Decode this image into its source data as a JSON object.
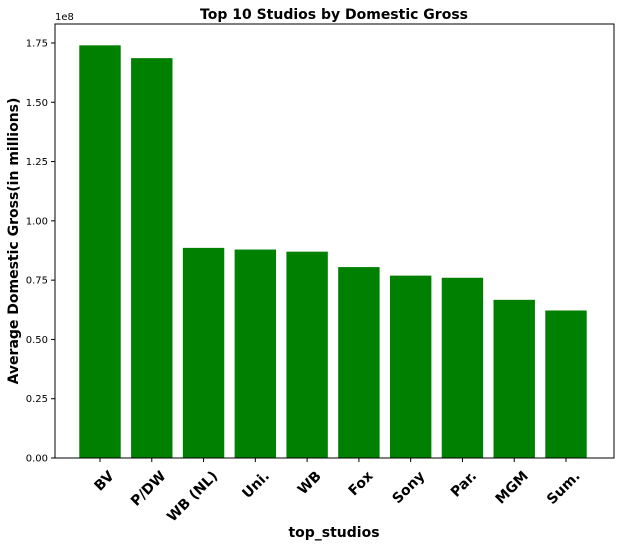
{
  "chart_data": {
    "type": "bar",
    "title": "Top 10 Studios by Domestic Gross",
    "xlabel": "top_studios",
    "ylabel": "Average Domestic Gross(in millions)",
    "y_offset_label": "1e8",
    "categories": [
      "BV",
      "P/DW",
      "WB (NL)",
      "Uni.",
      "WB",
      "Fox",
      "Sony",
      "Par.",
      "MGM",
      "Sum."
    ],
    "values": [
      174000000,
      168600000,
      88600000,
      87900000,
      87000000,
      80500000,
      76900000,
      76000000,
      66700000,
      62200000
    ],
    "ylim": [
      0,
      183000000
    ],
    "yticks": [
      0,
      25000000,
      50000000,
      75000000,
      100000000,
      125000000,
      150000000,
      175000000
    ],
    "ytick_labels": [
      "0.00",
      "0.25",
      "0.50",
      "0.75",
      "1.00",
      "1.25",
      "1.50",
      "1.75"
    ],
    "bar_color": "#008000",
    "grid": false,
    "legend": "none"
  }
}
